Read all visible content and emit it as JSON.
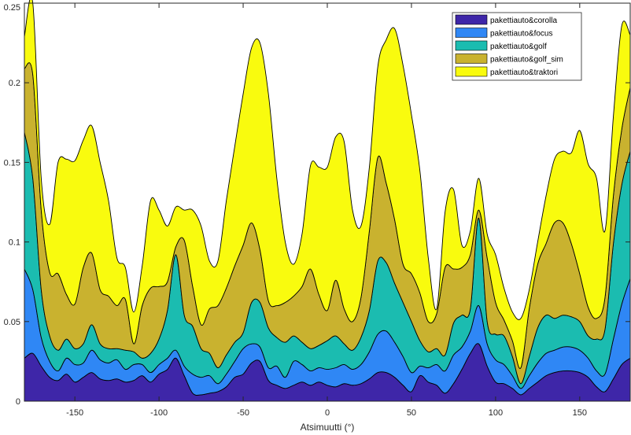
{
  "chart_data": {
    "type": "area",
    "title": "",
    "xlabel": "Atsimuutti (°)",
    "ylabel": "",
    "xlim": [
      -180,
      180
    ],
    "ylim": [
      0,
      0.25
    ],
    "xticks": [
      -150,
      -100,
      -50,
      0,
      50,
      100,
      150
    ],
    "yticks": [
      0,
      0.05,
      0.1,
      0.15,
      0.2,
      0.25
    ],
    "xtick_labels": [
      "-150",
      "-100",
      "-50",
      "0",
      "50",
      "100",
      "150"
    ],
    "ytick_labels": [
      "0",
      "0.05",
      "0.1",
      "0.15",
      "0.2",
      "0.25"
    ],
    "grid": false,
    "legend_position": "top-right",
    "stacked": true,
    "x": [
      -180,
      -175,
      -170,
      -165,
      -160,
      -155,
      -150,
      -145,
      -140,
      -135,
      -130,
      -125,
      -120,
      -115,
      -110,
      -105,
      -100,
      -95,
      -90,
      -85,
      -80,
      -75,
      -70,
      -65,
      -60,
      -55,
      -50,
      -45,
      -40,
      -35,
      -30,
      -25,
      -20,
      -15,
      -10,
      -5,
      0,
      5,
      10,
      15,
      20,
      25,
      30,
      35,
      40,
      45,
      50,
      55,
      60,
      65,
      70,
      75,
      80,
      85,
      90,
      95,
      100,
      105,
      110,
      115,
      120,
      125,
      130,
      135,
      140,
      145,
      150,
      155,
      160,
      165,
      170,
      175,
      180
    ],
    "series": [
      {
        "name": "pakettiauto&corolla",
        "color": "#3e26a8",
        "values": [
          0.027,
          0.03,
          0.022,
          0.015,
          0.013,
          0.017,
          0.012,
          0.015,
          0.018,
          0.014,
          0.013,
          0.014,
          0.012,
          0.013,
          0.016,
          0.012,
          0.017,
          0.02,
          0.027,
          0.016,
          0.005,
          0.004,
          0.005,
          0.006,
          0.009,
          0.015,
          0.017,
          0.024,
          0.025,
          0.013,
          0.01,
          0.008,
          0.01,
          0.012,
          0.01,
          0.012,
          0.01,
          0.009,
          0.011,
          0.01,
          0.011,
          0.014,
          0.018,
          0.018,
          0.015,
          0.01,
          0.006,
          0.016,
          0.012,
          0.01,
          0.005,
          0.011,
          0.02,
          0.03,
          0.036,
          0.022,
          0.012,
          0.011,
          0.008,
          0.004,
          0.008,
          0.012,
          0.016,
          0.018,
          0.019,
          0.019,
          0.018,
          0.015,
          0.009,
          0.006,
          0.014,
          0.023,
          0.027
        ]
      },
      {
        "name": "pakettiauto&focus",
        "color": "#2f87f5",
        "values": [
          0.056,
          0.04,
          0.018,
          0.01,
          0.006,
          0.01,
          0.011,
          0.009,
          0.014,
          0.012,
          0.011,
          0.012,
          0.008,
          0.01,
          0.007,
          0.006,
          0.006,
          0.007,
          0.005,
          0.006,
          0.012,
          0.011,
          0.011,
          0.005,
          0.008,
          0.01,
          0.016,
          0.012,
          0.009,
          0.008,
          0.012,
          0.007,
          0.015,
          0.011,
          0.009,
          0.009,
          0.01,
          0.012,
          0.012,
          0.01,
          0.012,
          0.017,
          0.024,
          0.026,
          0.022,
          0.018,
          0.012,
          0.006,
          0.009,
          0.013,
          0.014,
          0.018,
          0.014,
          0.014,
          0.024,
          0.014,
          0.014,
          0.012,
          0.008,
          0.004,
          0.008,
          0.012,
          0.014,
          0.014,
          0.015,
          0.015,
          0.014,
          0.012,
          0.01,
          0.011,
          0.025,
          0.038,
          0.05
        ]
      },
      {
        "name": "pakettiauto&golf",
        "color": "#1bbcb0",
        "values": [
          0.086,
          0.07,
          0.03,
          0.016,
          0.013,
          0.012,
          0.01,
          0.012,
          0.016,
          0.01,
          0.009,
          0.007,
          0.012,
          0.008,
          0.004,
          0.012,
          0.016,
          0.03,
          0.06,
          0.032,
          0.03,
          0.018,
          0.014,
          0.01,
          0.012,
          0.012,
          0.01,
          0.026,
          0.028,
          0.025,
          0.018,
          0.022,
          0.016,
          0.014,
          0.014,
          0.014,
          0.018,
          0.02,
          0.013,
          0.012,
          0.017,
          0.026,
          0.046,
          0.043,
          0.037,
          0.034,
          0.032,
          0.016,
          0.01,
          0.01,
          0.01,
          0.02,
          0.02,
          0.014,
          0.055,
          0.014,
          0.016,
          0.018,
          0.012,
          0.003,
          0.012,
          0.022,
          0.024,
          0.02,
          0.02,
          0.019,
          0.018,
          0.014,
          0.02,
          0.028,
          0.06,
          0.075,
          0.08
        ]
      },
      {
        "name": "pakettiauto&golf_sim",
        "color": "#c9b22f",
        "values": [
          0.04,
          0.065,
          0.05,
          0.04,
          0.048,
          0.028,
          0.028,
          0.048,
          0.045,
          0.034,
          0.033,
          0.027,
          0.032,
          0.005,
          0.033,
          0.041,
          0.033,
          0.018,
          0.005,
          0.047,
          0.025,
          0.015,
          0.028,
          0.039,
          0.042,
          0.048,
          0.055,
          0.05,
          0.033,
          0.017,
          0.02,
          0.025,
          0.025,
          0.035,
          0.05,
          0.032,
          0.019,
          0.035,
          0.022,
          0.018,
          0.025,
          0.05,
          0.065,
          0.05,
          0.04,
          0.024,
          0.03,
          0.03,
          0.019,
          0.022,
          0.055,
          0.034,
          0.03,
          0.034,
          0.005,
          0.04,
          0.02,
          0.01,
          0.01,
          0.01,
          0.03,
          0.04,
          0.045,
          0.06,
          0.058,
          0.046,
          0.03,
          0.018,
          0.013,
          0.02,
          0.03,
          0.035,
          0.04
        ]
      },
      {
        "name": "pakettiauto&traktori",
        "color": "#f9fb0e",
        "values": [
          0.02,
          0.045,
          0.02,
          0.03,
          0.07,
          0.085,
          0.09,
          0.08,
          0.08,
          0.08,
          0.06,
          0.03,
          0.02,
          0.02,
          0.025,
          0.055,
          0.048,
          0.035,
          0.025,
          0.019,
          0.048,
          0.062,
          0.03,
          0.028,
          0.055,
          0.075,
          0.095,
          0.11,
          0.13,
          0.13,
          0.08,
          0.038,
          0.02,
          0.033,
          0.065,
          0.08,
          0.09,
          0.09,
          0.105,
          0.07,
          0.045,
          0.04,
          0.057,
          0.09,
          0.12,
          0.125,
          0.1,
          0.077,
          0.04,
          0.003,
          0.035,
          0.05,
          0.014,
          0.015,
          0.02,
          0.015,
          0.03,
          0.02,
          0.018,
          0.031,
          0.012,
          0.014,
          0.03,
          0.04,
          0.045,
          0.057,
          0.09,
          0.09,
          0.088,
          0.042,
          0.05,
          0.065,
          0.033
        ]
      }
    ]
  }
}
